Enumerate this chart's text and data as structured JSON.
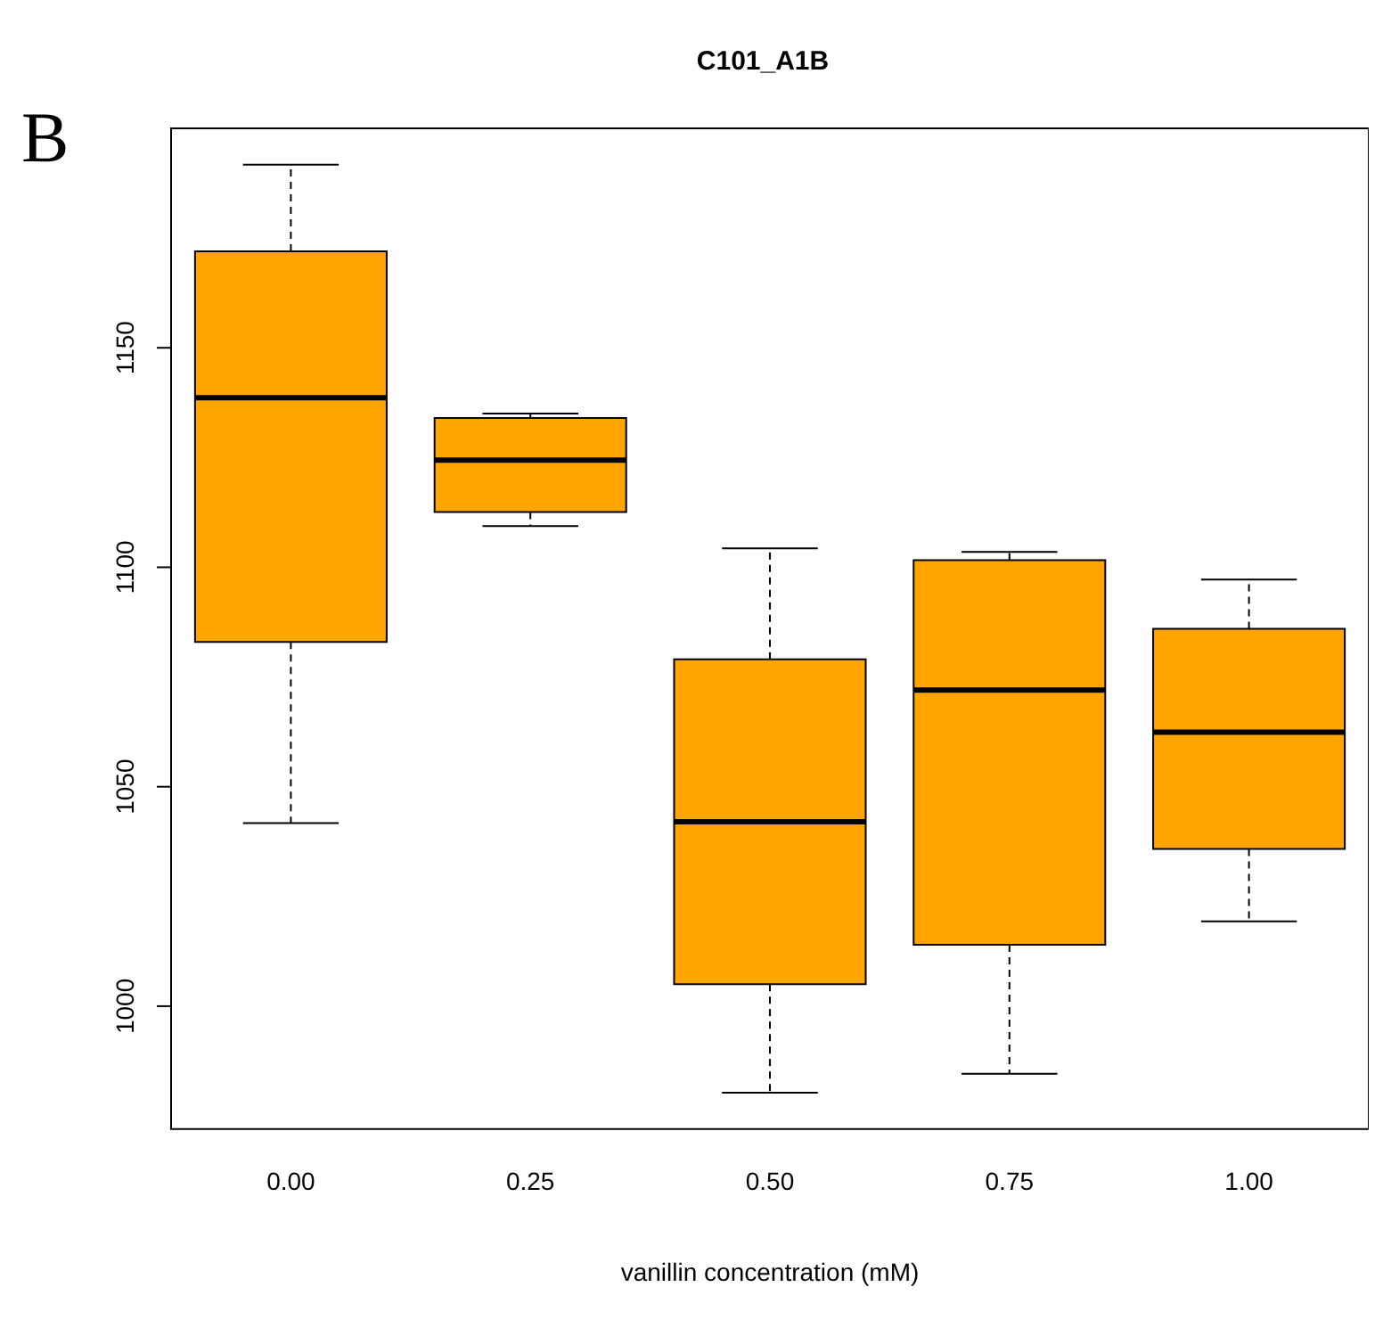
{
  "chart_data": {
    "type": "box",
    "title": "C101_A1B",
    "xlabel": "vanillin concentration (mM)",
    "annotations": [
      "B"
    ],
    "categories": [
      "0.00",
      "0.25",
      "0.50",
      "0.75",
      "1.00"
    ],
    "color": "#ffa500",
    "boxes": [
      {
        "low": 1041.7,
        "q1": 1083,
        "median": 1138.6,
        "q3": 1172,
        "high": 1191.7
      },
      {
        "low": 1109.4,
        "q1": 1112.6,
        "median": 1124.4,
        "q3": 1134,
        "high": 1135
      },
      {
        "low": 980.3,
        "q1": 1005,
        "median": 1042,
        "q3": 1079,
        "high": 1104.3
      },
      {
        "low": 984.6,
        "q1": 1014,
        "median": 1072,
        "q3": 1101.6,
        "high": 1103.5
      },
      {
        "low": 1019.3,
        "q1": 1035.8,
        "median": 1062.4,
        "q3": 1086,
        "high": 1097.2
      }
    ],
    "ylim": [
      972,
      1200
    ],
    "yticks": [
      1000,
      1050,
      1100,
      1150
    ],
    "grid": false,
    "legend": false
  }
}
